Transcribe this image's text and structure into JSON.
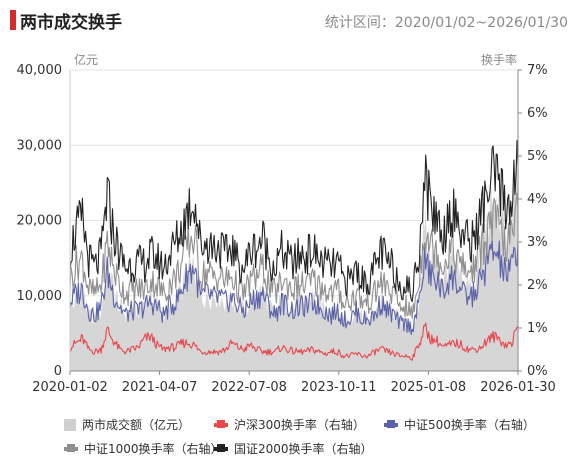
{
  "header": {
    "title": "两市成交换手",
    "subtitle": "统计区间：2020/01/02~2026/01/30"
  },
  "chart_data": {
    "type": "line",
    "title": "两市成交换手",
    "left_axis_unit": "亿元",
    "right_axis_unit": "换手率",
    "y_left": {
      "min": 0,
      "max": 40000,
      "ticks": [
        "0",
        "10,000",
        "20,000",
        "30,000",
        "40,000"
      ]
    },
    "y_right": {
      "min": 0,
      "max": 7,
      "ticks": [
        "0%",
        "1%",
        "2%",
        "3%",
        "4%",
        "5%",
        "6%",
        "7%"
      ]
    },
    "x_ticks": [
      "2020-01-02",
      "2021-04-07",
      "2022-07-08",
      "2023-10-11",
      "2025-01-08",
      "2026-01-30"
    ],
    "grid": true,
    "legend_position": "bottom",
    "x": [
      "2020-01",
      "2020-02",
      "2020-03",
      "2020-04",
      "2020-05",
      "2020-06",
      "2020-07",
      "2020-08",
      "2020-09",
      "2020-10",
      "2020-11",
      "2020-12",
      "2021-01",
      "2021-02",
      "2021-03",
      "2021-04",
      "2021-05",
      "2021-06",
      "2021-07",
      "2021-08",
      "2021-09",
      "2021-10",
      "2021-11",
      "2021-12",
      "2022-01",
      "2022-02",
      "2022-03",
      "2022-04",
      "2022-05",
      "2022-06",
      "2022-07",
      "2022-08",
      "2022-09",
      "2022-10",
      "2022-11",
      "2022-12",
      "2023-01",
      "2023-02",
      "2023-03",
      "2023-04",
      "2023-05",
      "2023-06",
      "2023-07",
      "2023-08",
      "2023-09",
      "2023-10",
      "2023-11",
      "2023-12",
      "2024-01",
      "2024-02",
      "2024-03",
      "2024-04",
      "2024-05",
      "2024-06",
      "2024-07",
      "2024-08",
      "2024-09",
      "2024-10",
      "2024-11",
      "2024-12",
      "2025-01",
      "2025-02",
      "2025-03",
      "2025-04",
      "2025-05",
      "2025-06",
      "2025-07",
      "2025-08",
      "2025-09",
      "2025-10",
      "2025-11",
      "2025-12",
      "2026-01"
    ],
    "series": [
      {
        "name": "两市成交额（亿元）",
        "axis": "left",
        "color": "#cfcfcf",
        "style": "area",
        "values": [
          8000,
          9500,
          10500,
          7500,
          7000,
          8000,
          14000,
          11000,
          8500,
          7500,
          8000,
          8000,
          9500,
          10000,
          9000,
          7500,
          8500,
          9500,
          11000,
          13000,
          13500,
          9500,
          10000,
          10000,
          10000,
          9000,
          9500,
          8500,
          8000,
          9500,
          10000,
          11000,
          8500,
          7500,
          9500,
          9000,
          8500,
          9000,
          9000,
          10000,
          9000,
          8500,
          8000,
          8500,
          7000,
          7000,
          8000,
          7000,
          7000,
          8000,
          9500,
          8500,
          8000,
          6500,
          6500,
          5500,
          9000,
          20000,
          15000,
          14500,
          12000,
          15000,
          14000,
          12000,
          11500,
          12000,
          14500,
          20000,
          22000,
          21000,
          18000,
          19000,
          27000
        ]
      },
      {
        "name": "沪深300换手率（右轴）",
        "axis": "right",
        "color": "#e8474c",
        "style": "line",
        "values": [
          0.55,
          0.65,
          0.75,
          0.5,
          0.45,
          0.5,
          0.95,
          0.7,
          0.5,
          0.45,
          0.5,
          0.55,
          0.75,
          0.8,
          0.6,
          0.5,
          0.55,
          0.55,
          0.65,
          0.65,
          0.6,
          0.45,
          0.45,
          0.45,
          0.45,
          0.5,
          0.65,
          0.55,
          0.5,
          0.6,
          0.5,
          0.45,
          0.45,
          0.45,
          0.55,
          0.5,
          0.45,
          0.45,
          0.45,
          0.5,
          0.45,
          0.4,
          0.45,
          0.45,
          0.35,
          0.35,
          0.4,
          0.35,
          0.35,
          0.45,
          0.5,
          0.45,
          0.4,
          0.35,
          0.35,
          0.3,
          0.6,
          1.0,
          0.75,
          0.7,
          0.55,
          0.6,
          0.65,
          0.6,
          0.5,
          0.5,
          0.55,
          0.7,
          0.8,
          0.75,
          0.6,
          0.65,
          1.05
        ]
      },
      {
        "name": "中证500换手率（右轴）",
        "axis": "right",
        "color": "#5b63a8",
        "style": "line",
        "values": [
          1.6,
          1.8,
          1.9,
          1.4,
          1.3,
          1.5,
          2.3,
          1.8,
          1.5,
          1.3,
          1.4,
          1.4,
          1.5,
          1.6,
          1.5,
          1.3,
          1.5,
          1.6,
          1.9,
          2.3,
          2.4,
          1.7,
          1.8,
          1.7,
          1.7,
          1.6,
          1.7,
          1.5,
          1.4,
          1.6,
          1.7,
          1.8,
          1.5,
          1.3,
          1.6,
          1.5,
          1.4,
          1.5,
          1.5,
          1.6,
          1.5,
          1.4,
          1.3,
          1.4,
          1.2,
          1.2,
          1.4,
          1.2,
          1.2,
          1.3,
          1.6,
          1.4,
          1.3,
          1.1,
          1.1,
          1.0,
          1.5,
          2.6,
          2.2,
          2.1,
          1.8,
          2.2,
          2.1,
          1.8,
          1.7,
          1.8,
          2.1,
          2.5,
          2.8,
          2.6,
          2.2,
          2.4,
          3.0
        ]
      },
      {
        "name": "中证1000换手率（右轴）",
        "axis": "right",
        "color": "#8f8f8f",
        "style": "line",
        "values": [
          2.1,
          2.5,
          2.6,
          1.9,
          1.8,
          2.0,
          3.0,
          2.4,
          2.0,
          1.8,
          1.9,
          1.9,
          1.9,
          2.1,
          2.0,
          1.8,
          2.0,
          2.2,
          2.5,
          3.0,
          3.1,
          2.2,
          2.3,
          2.2,
          2.2,
          2.1,
          2.2,
          1.9,
          1.8,
          2.1,
          2.2,
          2.4,
          2.0,
          1.8,
          2.1,
          2.0,
          1.9,
          2.0,
          2.0,
          2.1,
          2.0,
          1.9,
          1.8,
          1.9,
          1.6,
          1.6,
          1.8,
          1.6,
          1.6,
          1.8,
          2.1,
          1.9,
          1.8,
          1.5,
          1.5,
          1.3,
          2.0,
          3.4,
          2.9,
          2.8,
          2.4,
          2.9,
          2.7,
          2.4,
          2.3,
          2.4,
          2.8,
          3.2,
          3.5,
          3.3,
          2.9,
          3.1,
          3.8
        ]
      },
      {
        "name": "国证2000换手率（右轴）",
        "axis": "right",
        "color": "#222222",
        "style": "line",
        "values": [
          2.8,
          3.3,
          3.5,
          2.6,
          2.4,
          2.7,
          4.1,
          3.2,
          2.7,
          2.4,
          2.5,
          2.5,
          2.5,
          2.7,
          2.6,
          2.4,
          2.7,
          3.0,
          3.3,
          3.8,
          4.0,
          2.9,
          3.0,
          2.9,
          2.9,
          2.7,
          2.9,
          2.5,
          2.4,
          2.8,
          2.9,
          3.1,
          2.6,
          2.4,
          2.8,
          2.6,
          2.5,
          2.7,
          2.7,
          2.8,
          2.6,
          2.5,
          2.4,
          2.5,
          2.1,
          2.1,
          2.4,
          2.1,
          2.1,
          2.4,
          2.8,
          2.5,
          2.4,
          2.0,
          2.0,
          1.8,
          2.7,
          4.6,
          3.8,
          3.6,
          3.1,
          3.8,
          3.6,
          3.2,
          3.0,
          3.1,
          3.6,
          4.1,
          4.5,
          4.3,
          3.8,
          4.0,
          4.8
        ]
      }
    ]
  }
}
